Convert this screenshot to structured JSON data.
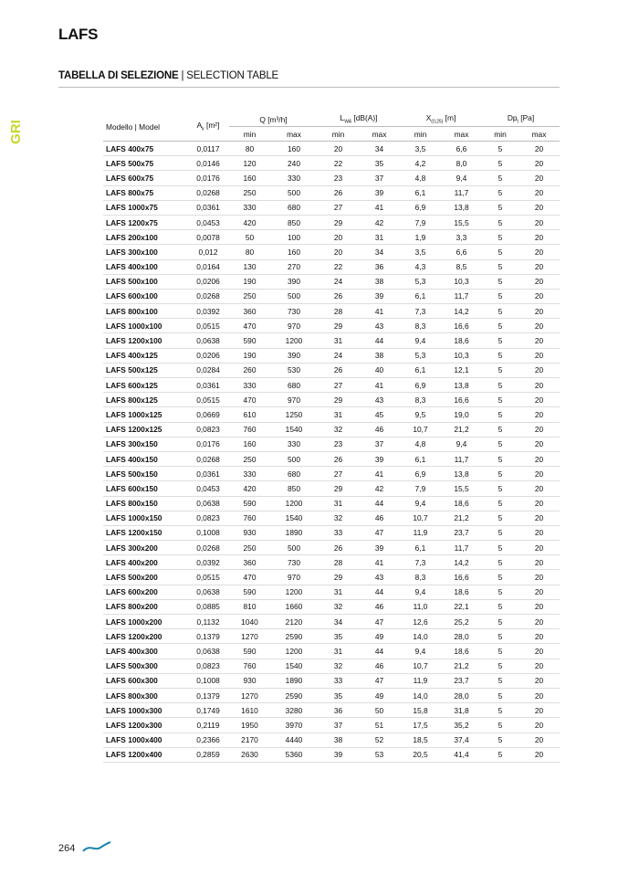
{
  "page_title": "LAFS",
  "section": {
    "title_it": "TABELLA DI SELEZIONE",
    "separator": " | ",
    "title_en": "SELECTION TABLE"
  },
  "side_tab": "GRI",
  "page_number": "264",
  "colors": {
    "side_tab": "#c5d82c",
    "logo_wave": "#1b84a8"
  },
  "table": {
    "headers": {
      "model": "Modello | Model",
      "ak": "A",
      "ak_sub": "k",
      "ak_unit": " [m²]",
      "q": "Q [m³/h]",
      "lwa": "L",
      "lwa_sub": "WA",
      "lwa_unit": " [dB(A)]",
      "x": "X",
      "x_sub": "(0,25)",
      "x_unit": " [m]",
      "dp": "Dp",
      "dp_sub": "t",
      "dp_unit": " [Pa]",
      "min": "min",
      "max": "max"
    },
    "rows": [
      [
        "LAFS 400x75",
        "0,0117",
        "80",
        "160",
        "20",
        "34",
        "3,5",
        "6,6",
        "5",
        "20"
      ],
      [
        "LAFS 500x75",
        "0,0146",
        "120",
        "240",
        "22",
        "35",
        "4,2",
        "8,0",
        "5",
        "20"
      ],
      [
        "LAFS 600x75",
        "0,0176",
        "160",
        "330",
        "23",
        "37",
        "4,8",
        "9,4",
        "5",
        "20"
      ],
      [
        "LAFS 800x75",
        "0,0268",
        "250",
        "500",
        "26",
        "39",
        "6,1",
        "11,7",
        "5",
        "20"
      ],
      [
        "LAFS 1000x75",
        "0,0361",
        "330",
        "680",
        "27",
        "41",
        "6,9",
        "13,8",
        "5",
        "20"
      ],
      [
        "LAFS 1200x75",
        "0,0453",
        "420",
        "850",
        "29",
        "42",
        "7,9",
        "15,5",
        "5",
        "20"
      ],
      [
        "LAFS 200x100",
        "0,0078",
        "50",
        "100",
        "20",
        "31",
        "1,9",
        "3,3",
        "5",
        "20"
      ],
      [
        "LAFS 300x100",
        "0,012",
        "80",
        "160",
        "20",
        "34",
        "3,5",
        "6,6",
        "5",
        "20"
      ],
      [
        "LAFS 400x100",
        "0,0164",
        "130",
        "270",
        "22",
        "36",
        "4,3",
        "8,5",
        "5",
        "20"
      ],
      [
        "LAFS 500x100",
        "0,0206",
        "190",
        "390",
        "24",
        "38",
        "5,3",
        "10,3",
        "5",
        "20"
      ],
      [
        "LAFS 600x100",
        "0,0268",
        "250",
        "500",
        "26",
        "39",
        "6,1",
        "11,7",
        "5",
        "20"
      ],
      [
        "LAFS 800x100",
        "0,0392",
        "360",
        "730",
        "28",
        "41",
        "7,3",
        "14,2",
        "5",
        "20"
      ],
      [
        "LAFS 1000x100",
        "0,0515",
        "470",
        "970",
        "29",
        "43",
        "8,3",
        "16,6",
        "5",
        "20"
      ],
      [
        "LAFS 1200x100",
        "0,0638",
        "590",
        "1200",
        "31",
        "44",
        "9,4",
        "18,6",
        "5",
        "20"
      ],
      [
        "LAFS 400x125",
        "0,0206",
        "190",
        "390",
        "24",
        "38",
        "5,3",
        "10,3",
        "5",
        "20"
      ],
      [
        "LAFS 500x125",
        "0,0284",
        "260",
        "530",
        "26",
        "40",
        "6,1",
        "12,1",
        "5",
        "20"
      ],
      [
        "LAFS 600x125",
        "0,0361",
        "330",
        "680",
        "27",
        "41",
        "6,9",
        "13,8",
        "5",
        "20"
      ],
      [
        "LAFS 800x125",
        "0,0515",
        "470",
        "970",
        "29",
        "43",
        "8,3",
        "16,6",
        "5",
        "20"
      ],
      [
        "LAFS 1000x125",
        "0,0669",
        "610",
        "1250",
        "31",
        "45",
        "9,5",
        "19,0",
        "5",
        "20"
      ],
      [
        "LAFS 1200x125",
        "0,0823",
        "760",
        "1540",
        "32",
        "46",
        "10,7",
        "21,2",
        "5",
        "20"
      ],
      [
        "LAFS 300x150",
        "0,0176",
        "160",
        "330",
        "23",
        "37",
        "4,8",
        "9,4",
        "5",
        "20"
      ],
      [
        "LAFS 400x150",
        "0,0268",
        "250",
        "500",
        "26",
        "39",
        "6,1",
        "11,7",
        "5",
        "20"
      ],
      [
        "LAFS 500x150",
        "0,0361",
        "330",
        "680",
        "27",
        "41",
        "6,9",
        "13,8",
        "5",
        "20"
      ],
      [
        "LAFS 600x150",
        "0,0453",
        "420",
        "850",
        "29",
        "42",
        "7,9",
        "15,5",
        "5",
        "20"
      ],
      [
        "LAFS 800x150",
        "0,0638",
        "590",
        "1200",
        "31",
        "44",
        "9,4",
        "18,6",
        "5",
        "20"
      ],
      [
        "LAFS 1000x150",
        "0,0823",
        "760",
        "1540",
        "32",
        "46",
        "10,7",
        "21,2",
        "5",
        "20"
      ],
      [
        "LAFS 1200x150",
        "0,1008",
        "930",
        "1890",
        "33",
        "47",
        "11,9",
        "23,7",
        "5",
        "20"
      ],
      [
        "LAFS 300x200",
        "0,0268",
        "250",
        "500",
        "26",
        "39",
        "6,1",
        "11,7",
        "5",
        "20"
      ],
      [
        "LAFS 400x200",
        "0,0392",
        "360",
        "730",
        "28",
        "41",
        "7,3",
        "14,2",
        "5",
        "20"
      ],
      [
        "LAFS 500x200",
        "0,0515",
        "470",
        "970",
        "29",
        "43",
        "8,3",
        "16,6",
        "5",
        "20"
      ],
      [
        "LAFS 600x200",
        "0,0638",
        "590",
        "1200",
        "31",
        "44",
        "9,4",
        "18,6",
        "5",
        "20"
      ],
      [
        "LAFS 800x200",
        "0,0885",
        "810",
        "1660",
        "32",
        "46",
        "11,0",
        "22,1",
        "5",
        "20"
      ],
      [
        "LAFS 1000x200",
        "0,1132",
        "1040",
        "2120",
        "34",
        "47",
        "12,6",
        "25,2",
        "5",
        "20"
      ],
      [
        "LAFS 1200x200",
        "0,1379",
        "1270",
        "2590",
        "35",
        "49",
        "14,0",
        "28,0",
        "5",
        "20"
      ],
      [
        "LAFS 400x300",
        "0,0638",
        "590",
        "1200",
        "31",
        "44",
        "9,4",
        "18,6",
        "5",
        "20"
      ],
      [
        "LAFS 500x300",
        "0,0823",
        "760",
        "1540",
        "32",
        "46",
        "10,7",
        "21,2",
        "5",
        "20"
      ],
      [
        "LAFS 600x300",
        "0,1008",
        "930",
        "1890",
        "33",
        "47",
        "11,9",
        "23,7",
        "5",
        "20"
      ],
      [
        "LAFS 800x300",
        "0,1379",
        "1270",
        "2590",
        "35",
        "49",
        "14,0",
        "28,0",
        "5",
        "20"
      ],
      [
        "LAFS 1000x300",
        "0,1749",
        "1610",
        "3280",
        "36",
        "50",
        "15,8",
        "31,8",
        "5",
        "20"
      ],
      [
        "LAFS 1200x300",
        "0,2119",
        "1950",
        "3970",
        "37",
        "51",
        "17,5",
        "35,2",
        "5",
        "20"
      ],
      [
        "LAFS 1000x400",
        "0,2366",
        "2170",
        "4440",
        "38",
        "52",
        "18,5",
        "37,4",
        "5",
        "20"
      ],
      [
        "LAFS 1200x400",
        "0,2859",
        "2630",
        "5360",
        "39",
        "53",
        "20,5",
        "41,4",
        "5",
        "20"
      ]
    ]
  }
}
